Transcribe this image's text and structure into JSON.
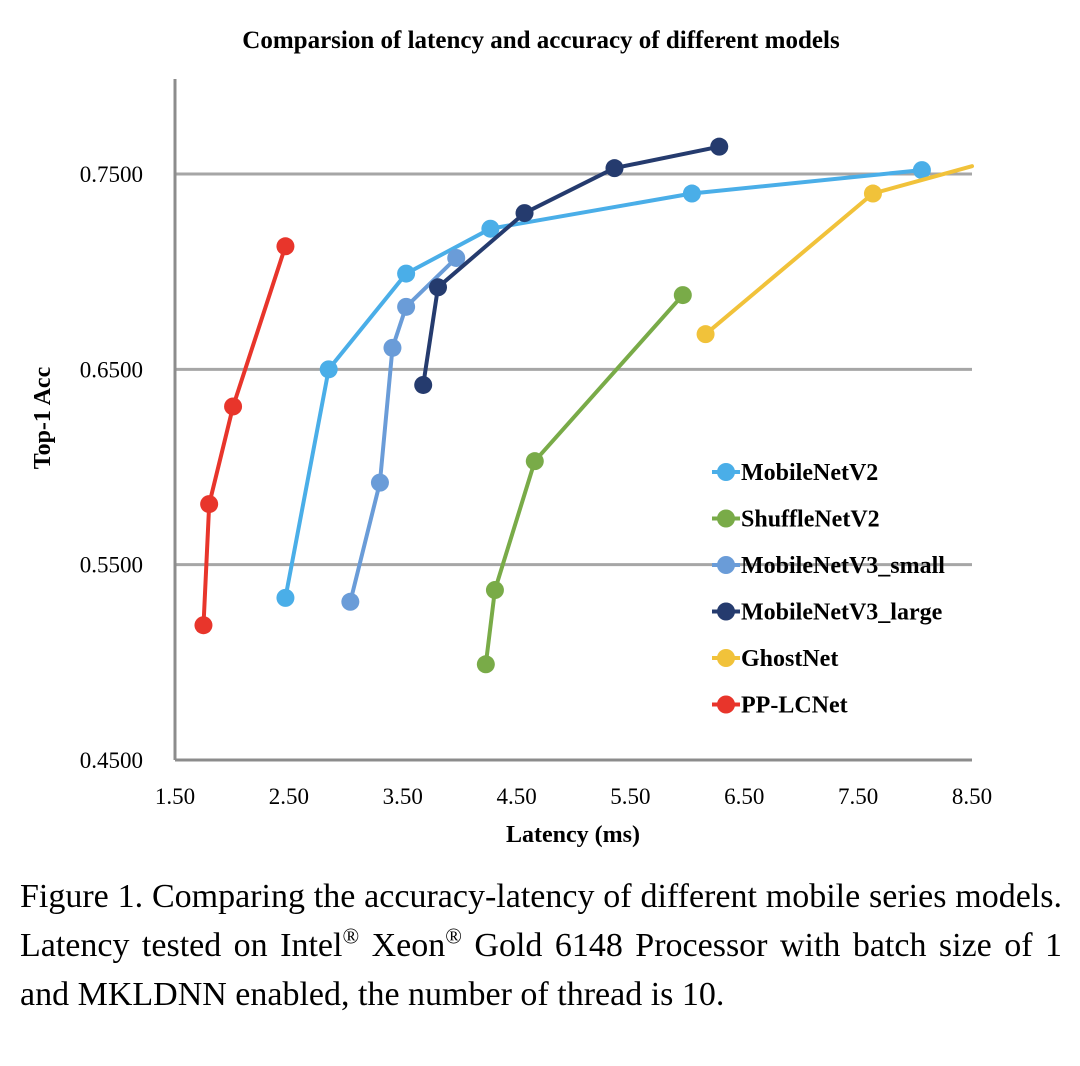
{
  "chart_data": {
    "type": "line",
    "title": "Comparsion of latency and accuracy of different models",
    "xlabel": "Latency (ms)",
    "ylabel": "Top-1 Acc",
    "xlim": [
      1.5,
      8.5
    ],
    "ylim": [
      0.45,
      0.8
    ],
    "xticks": [
      1.5,
      2.5,
      3.5,
      4.5,
      5.5,
      6.5,
      7.5,
      8.5
    ],
    "xtick_labels": [
      "1.50",
      "2.50",
      "3.50",
      "4.50",
      "5.50",
      "6.50",
      "7.50",
      "8.50"
    ],
    "yticks": [
      0.45,
      0.55,
      0.65,
      0.75
    ],
    "ytick_labels": [
      "0.4500",
      "0.5500",
      "0.6500",
      "0.7500"
    ],
    "grid": "horizontal",
    "legend_position": "right",
    "series": [
      {
        "name": "MobileNetV2",
        "color": "#4aaee8",
        "x": [
          2.47,
          2.85,
          3.53,
          4.27,
          6.04,
          8.06
        ],
        "y": [
          0.533,
          0.65,
          0.699,
          0.722,
          0.74,
          0.752
        ]
      },
      {
        "name": "ShuffleNetV2",
        "color": "#79ab48",
        "x": [
          4.23,
          4.31,
          4.66,
          5.96
        ],
        "y": [
          0.499,
          0.537,
          0.603,
          0.688
        ]
      },
      {
        "name": "MobileNetV3_small",
        "color": "#6a9cd8",
        "x": [
          3.04,
          3.3,
          3.41,
          3.53,
          3.97
        ],
        "y": [
          0.531,
          0.592,
          0.661,
          0.682,
          0.707
        ]
      },
      {
        "name": "MobileNetV3_large",
        "color": "#253b6e",
        "x": [
          3.68,
          3.81,
          4.57,
          5.36,
          6.28
        ],
        "y": [
          0.642,
          0.692,
          0.73,
          0.753,
          0.764
        ]
      },
      {
        "name": "GhostNet",
        "color": "#f1c23a",
        "x": [
          6.16,
          7.63,
          8.5
        ],
        "y": [
          0.668,
          0.74,
          0.754
        ]
      },
      {
        "name": "PP-LCNet",
        "color": "#e8352b",
        "x": [
          1.75,
          1.8,
          2.01,
          2.47
        ],
        "y": [
          0.519,
          0.581,
          0.631,
          0.713
        ]
      }
    ],
    "unmarked_last_point": [
      "GhostNet"
    ]
  },
  "caption": {
    "text_1": "Figure 1. Comparing the accuracy-latency of different mobile series models. Latency tested on Intel",
    "sup_1": "®",
    "text_2": " Xeon",
    "sup_2": "®",
    "text_3": " Gold 6148 Processor with batch size of 1 and MKLDNN enabled, the number of thread is 10."
  }
}
